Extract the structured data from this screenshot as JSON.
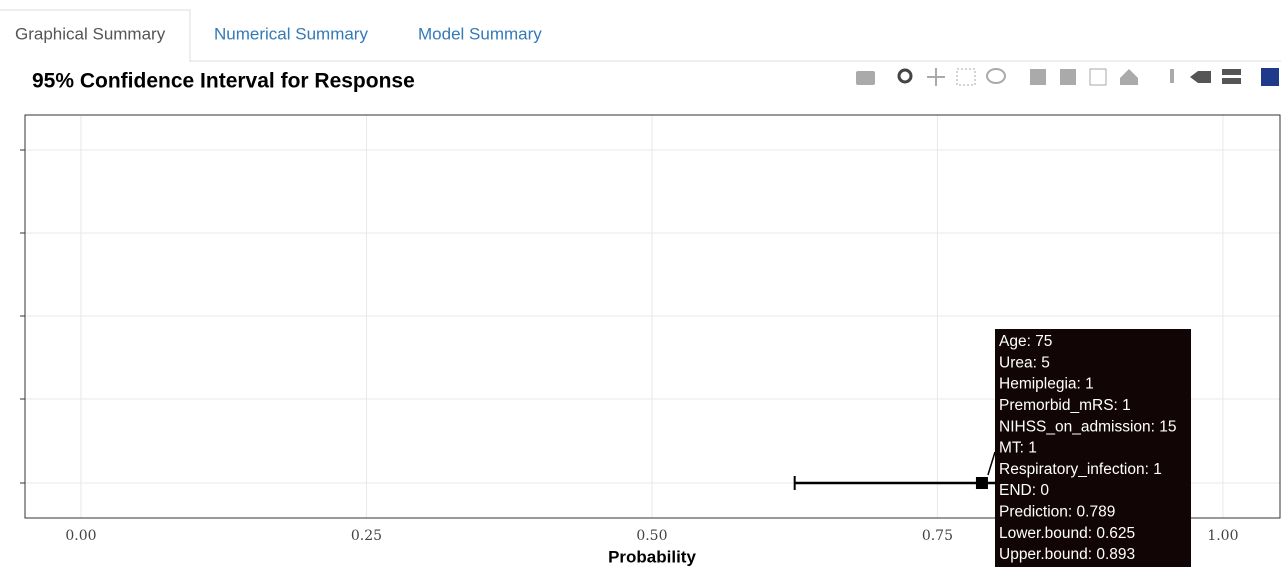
{
  "tabs": [
    "Graphical Summary",
    "Numerical Summary",
    "Model Summary"
  ],
  "chart_data": {
    "type": "errorbar",
    "title": "95% Confidence Interval for Response",
    "x_label": "Probability",
    "xlim": [
      -0.049,
      1.05
    ],
    "xticks": [
      {
        "value": 0,
        "label": "0.00"
      },
      {
        "value": 0.25,
        "label": "0.25"
      },
      {
        "value": 0.5,
        "label": "0.50"
      },
      {
        "value": 0.75,
        "label": "0.75"
      },
      {
        "value": 1,
        "label": "1.00"
      }
    ],
    "grid": true,
    "color": "#000000",
    "prediction": 0.789,
    "lower": 0.625,
    "upper": 0.893,
    "tooltip": [
      "Age: 75",
      "Urea: 5",
      "Hemiplegia: 1",
      "Premorbid_mRS: 1",
      "NIHSS_on_admission: 15",
      "MT: 1",
      "Respiratory_infection: 1",
      "END: 0",
      "Prediction: 0.789",
      "Lower.bound: 0.625",
      "Upper.bound: 0.893"
    ]
  }
}
